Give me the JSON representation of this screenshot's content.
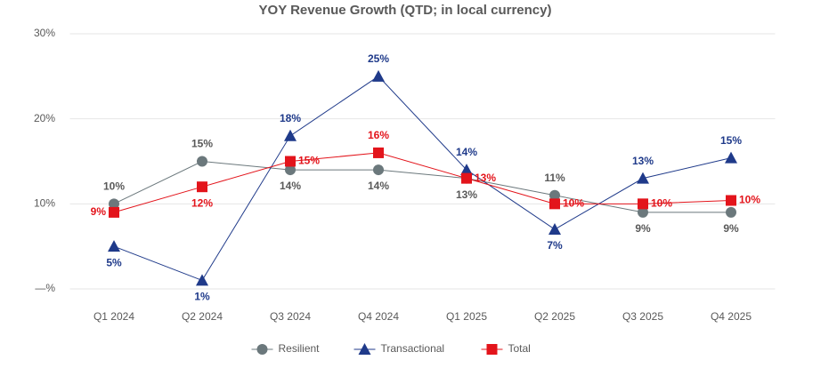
{
  "chart_data": {
    "type": "line",
    "title": "YOY Revenue Growth (QTD; in local currency)",
    "categories": [
      "Q1 2024",
      "Q2 2024",
      "Q3 2024",
      "Q4 2024",
      "Q1 2025",
      "Q2 2025",
      "Q3 2025",
      "Q4 2025"
    ],
    "ylim": [
      0,
      30
    ],
    "yticks": [
      {
        "value": 0,
        "label": "—%"
      },
      {
        "value": 10,
        "label": "10%"
      },
      {
        "value": 20,
        "label": "20%"
      },
      {
        "value": 30,
        "label": "30%"
      }
    ],
    "grid": true,
    "legend": "bottom",
    "series": [
      {
        "name": "Resilient",
        "color": "#6b787c",
        "marker": "circle",
        "values": [
          10,
          15,
          14,
          14,
          13,
          11,
          9,
          9
        ],
        "value_labels": [
          "10%",
          "15%",
          "14%",
          "14%",
          "13%",
          "11%",
          "9%",
          "9%"
        ]
      },
      {
        "name": "Transactional",
        "color": "#1f3a8a",
        "marker": "triangle",
        "values": [
          5,
          1,
          18,
          25,
          14,
          7,
          13,
          15.4
        ],
        "value_labels": [
          "5%",
          "1%",
          "18%",
          "25%",
          "14%",
          "7%",
          "13%",
          "15%"
        ]
      },
      {
        "name": "Total",
        "color": "#e3141b",
        "marker": "square",
        "values": [
          9,
          12,
          15,
          16,
          13,
          10,
          10,
          10.4
        ],
        "value_labels": [
          "9%",
          "12%",
          "15%",
          "16%",
          "13%",
          "10%",
          "10%",
          "10%"
        ]
      }
    ]
  }
}
